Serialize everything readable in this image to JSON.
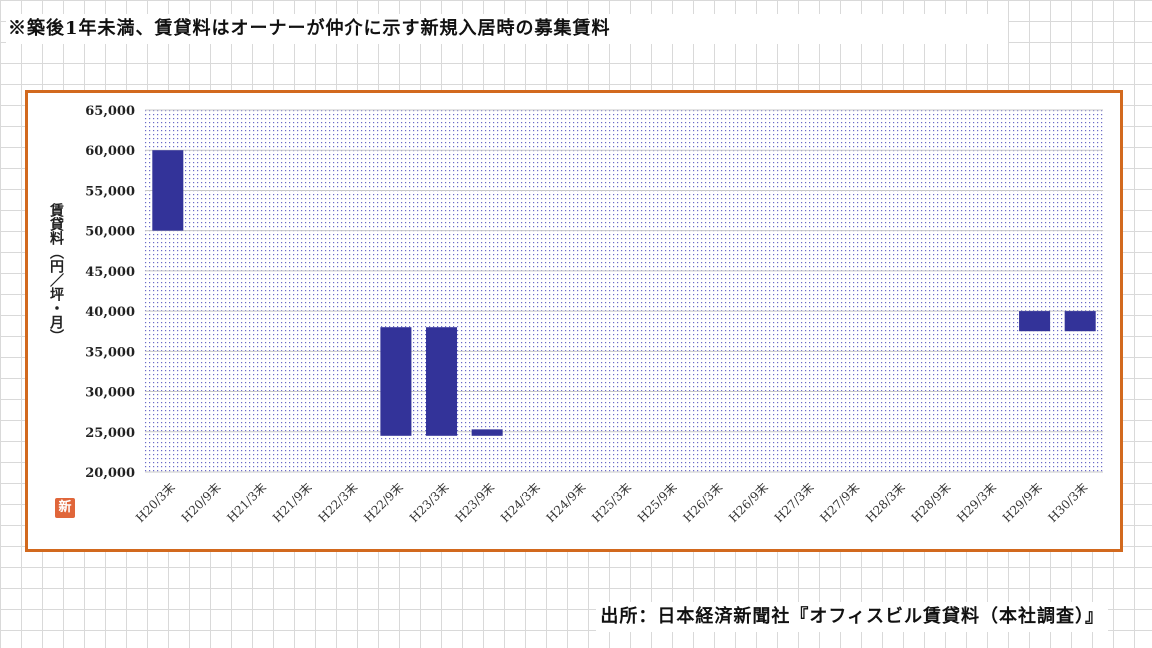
{
  "note": "※築後1年未満、賃貸料はオーナーが仲介に示す新規入居時の募集賃料",
  "source": "出所：日本経済新聞社『オフィスビル賃貸料（本社調査）』",
  "badge": "新",
  "colors": {
    "bar": "#333399",
    "frame": "#d2691e",
    "plot_dots": "#6a6ac8"
  },
  "chart_data": {
    "type": "bar",
    "subtype": "floating-range",
    "title": "",
    "xlabel": "",
    "ylabel": "賃貸料（円／坪・月）",
    "ylim": [
      20000,
      65000
    ],
    "yticks": [
      20000,
      25000,
      30000,
      35000,
      40000,
      45000,
      50000,
      55000,
      60000,
      65000
    ],
    "ytick_labels": [
      "20,000",
      "25,000",
      "30,000",
      "35,000",
      "40,000",
      "45,000",
      "50,000",
      "55,000",
      "60,000",
      "65,000"
    ],
    "grid": true,
    "legend": "none",
    "categories": [
      "H20/3末",
      "H20/9末",
      "H21/3末",
      "H21/9末",
      "H22/3末",
      "H22/9末",
      "H23/3末",
      "H23/9末",
      "H24/3末",
      "H24/9末",
      "H25/3末",
      "H25/9末",
      "H26/3末",
      "H26/9末",
      "H27/3末",
      "H27/9末",
      "H28/3末",
      "H28/9末",
      "H29/3末",
      "H29/9末",
      "H30/3末"
    ],
    "series": [
      {
        "low": [
          50000,
          null,
          null,
          null,
          null,
          24500,
          24500,
          24500,
          null,
          null,
          null,
          null,
          null,
          null,
          null,
          null,
          null,
          null,
          null,
          37500,
          37500
        ],
        "high": [
          60000,
          null,
          null,
          null,
          null,
          38000,
          38000,
          25300,
          null,
          null,
          null,
          null,
          null,
          null,
          null,
          null,
          null,
          null,
          null,
          40000,
          40000
        ]
      }
    ]
  }
}
